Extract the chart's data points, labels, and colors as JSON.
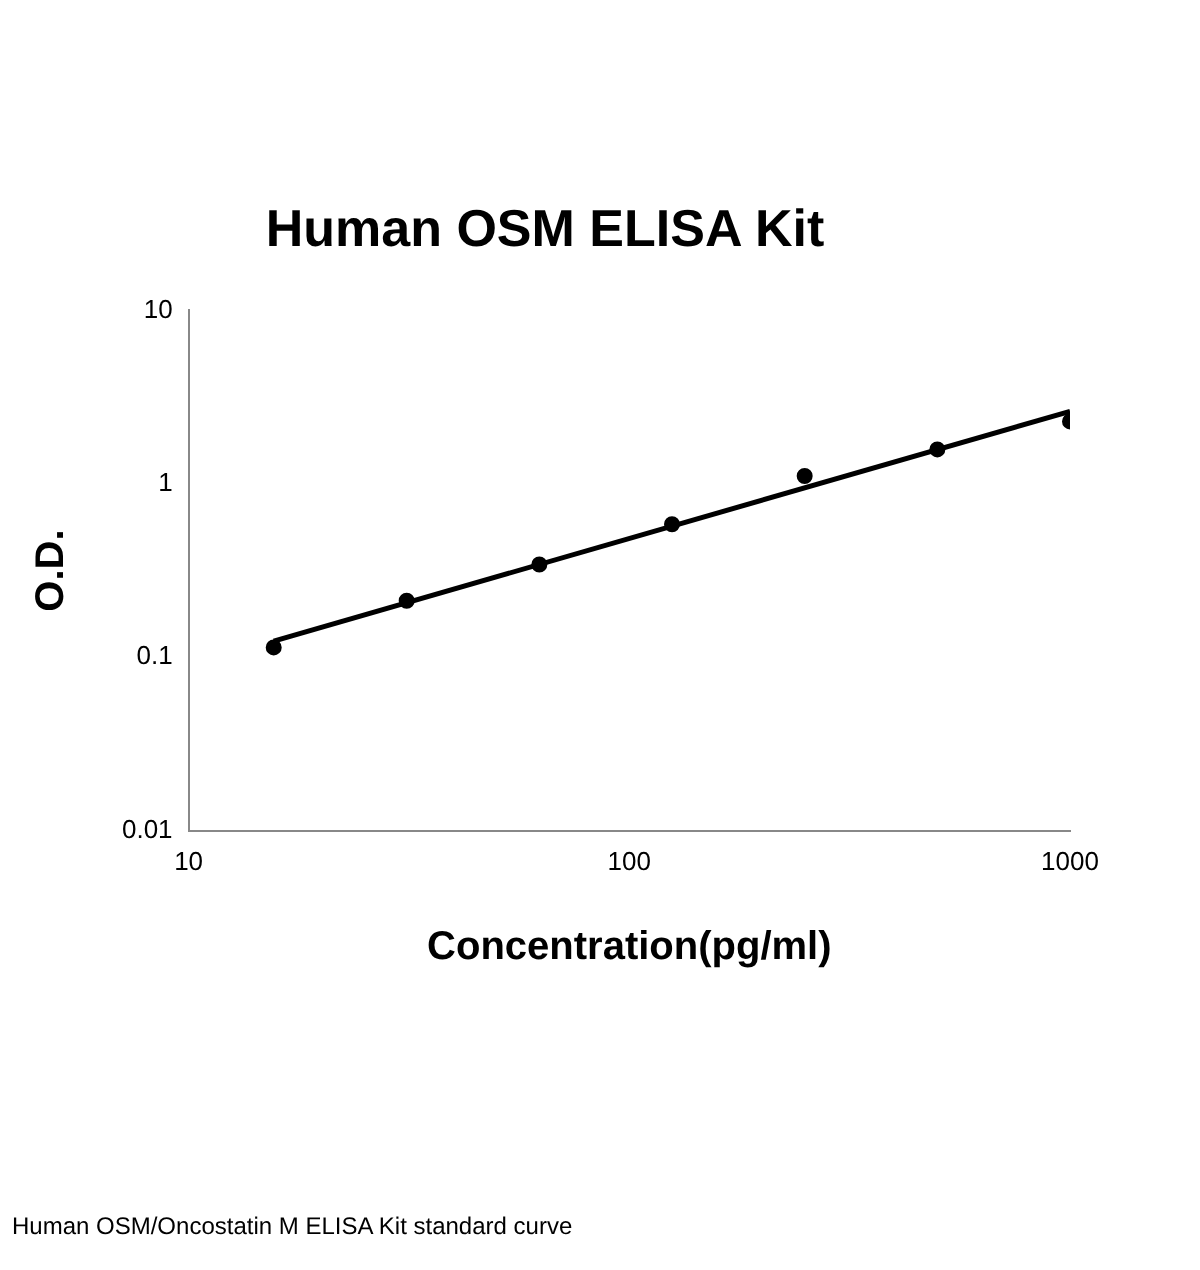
{
  "chart_data": {
    "type": "scatter",
    "title": "Human OSM ELISA Kit",
    "xlabel": "Concentration(pg/ml)",
    "ylabel": "O.D.",
    "log": "xy",
    "xlim": [
      10,
      1000
    ],
    "xticks": [
      10,
      100,
      1000
    ],
    "ylim": [
      0.01,
      10
    ],
    "yticks": [
      0.01,
      0.1,
      1,
      10
    ],
    "grid": false,
    "legend": false,
    "marker": "circle",
    "series": [
      {
        "color": "#000000",
        "x": [
          15.6,
          31.25,
          62.5,
          125,
          250,
          500,
          1000
        ],
        "values": [
          0.114,
          0.212,
          0.343,
          0.585,
          1.11,
          1.58,
          2.29
        ]
      },
      {
        "type": "line",
        "color": "#000000",
        "marker": "none",
        "line_style": "solid",
        "x": [
          15.6,
          1000
        ],
        "values": [
          0.124,
          2.62
        ]
      }
    ],
    "annotations": [
      "Human OSM/Oncostatin M ELISA Kit standard curve"
    ]
  }
}
